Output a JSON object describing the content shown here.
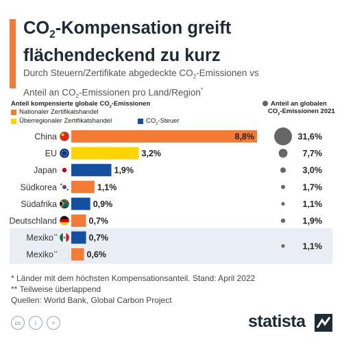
{
  "header": {
    "title_line1_pre": "CO",
    "title_line1_sub": "2",
    "title_line1_post": "-Kompensation greift",
    "title_line2": "flächendeckend zu kurz",
    "subtitle_line1_pre": "Durch Steuern/Zertifikate abgedeckte CO",
    "subtitle_line1_sub": "2",
    "subtitle_line1_post": "-Emissionen vs",
    "subtitle_line2_pre": "Anteil an CO",
    "subtitle_line2_sub": "2",
    "subtitle_line2_post": "-Emissionen pro Land/Region",
    "subtitle_mark": "*"
  },
  "legend": {
    "left_title_pre": "Anteil kompensierte globale CO",
    "left_title_sub": "2",
    "left_title_post": "-Emissionen",
    "national": "Nationaler Zertifikatshandel",
    "supra": "Überregionaler Zertifikatshandel",
    "tax_pre": "CO",
    "tax_sub": "2",
    "tax_post": "-Steuer",
    "right_title_line1": "Anteil an globalen",
    "right_title_line2_pre": "CO",
    "right_title_line2_sub": "2",
    "right_title_line2_post": "-Emissionen 2021"
  },
  "colors": {
    "national": "#f47b35",
    "supra": "#ffd400",
    "tax": "#1450a0",
    "dot": "#666666",
    "accent": "#f47b35"
  },
  "chart_data": {
    "type": "bar",
    "orientation": "horizontal",
    "x_max": 8.8,
    "rows": [
      {
        "label": "China",
        "flag": "china",
        "type": "national",
        "value": 8.8,
        "value_label": "8,8%",
        "share": 31.6,
        "share_label": "31,6%"
      },
      {
        "label": "EU",
        "flag": "eu",
        "type": "supra",
        "value": 3.2,
        "value_label": "3,2%",
        "share": 7.7,
        "share_label": "7,7%"
      },
      {
        "label": "Japan",
        "flag": "japan",
        "type": "tax",
        "value": 1.9,
        "value_label": "1,9%",
        "share": 3.0,
        "share_label": "3,0%"
      },
      {
        "label": "Südkorea",
        "flag": "korea",
        "type": "national",
        "value": 1.1,
        "value_label": "1,1%",
        "share": 1.7,
        "share_label": "1,7%"
      },
      {
        "label": "Südafrika",
        "flag": "southafrica",
        "type": "tax",
        "value": 0.9,
        "value_label": "0,9%",
        "share": 1.1,
        "share_label": "1,1%"
      },
      {
        "label": "Deutschland",
        "flag": "germany",
        "type": "national",
        "value": 0.7,
        "value_label": "0,7%",
        "share": 1.9,
        "share_label": "1,9%"
      },
      {
        "label": "Mexiko",
        "label_mark": "**",
        "flag": "mexico",
        "type": "tax",
        "value": 0.7,
        "value_label": "0,7%",
        "share": null,
        "share_label": null
      },
      {
        "label": "Mexiko",
        "label_mark": "**",
        "flag": "mexico",
        "type": "national",
        "value": 0.6,
        "value_label": "0,6%",
        "share": 1.1,
        "share_label": "1,1%",
        "share_spans_previous": true
      }
    ]
  },
  "footnotes": {
    "note1": "*  Länder mit dem höchsten Kompensationsanteil. Stand: April 2022",
    "note2": "** Teilweise überlappend",
    "sources": "Quellen: World Bank, Global Carbon Project"
  },
  "footer": {
    "cc_icons": [
      "cc-icon",
      "attribution-icon",
      "noderivs-icon"
    ],
    "cc_glyphs": [
      "cc",
      "i",
      "="
    ],
    "brand": "statista"
  }
}
